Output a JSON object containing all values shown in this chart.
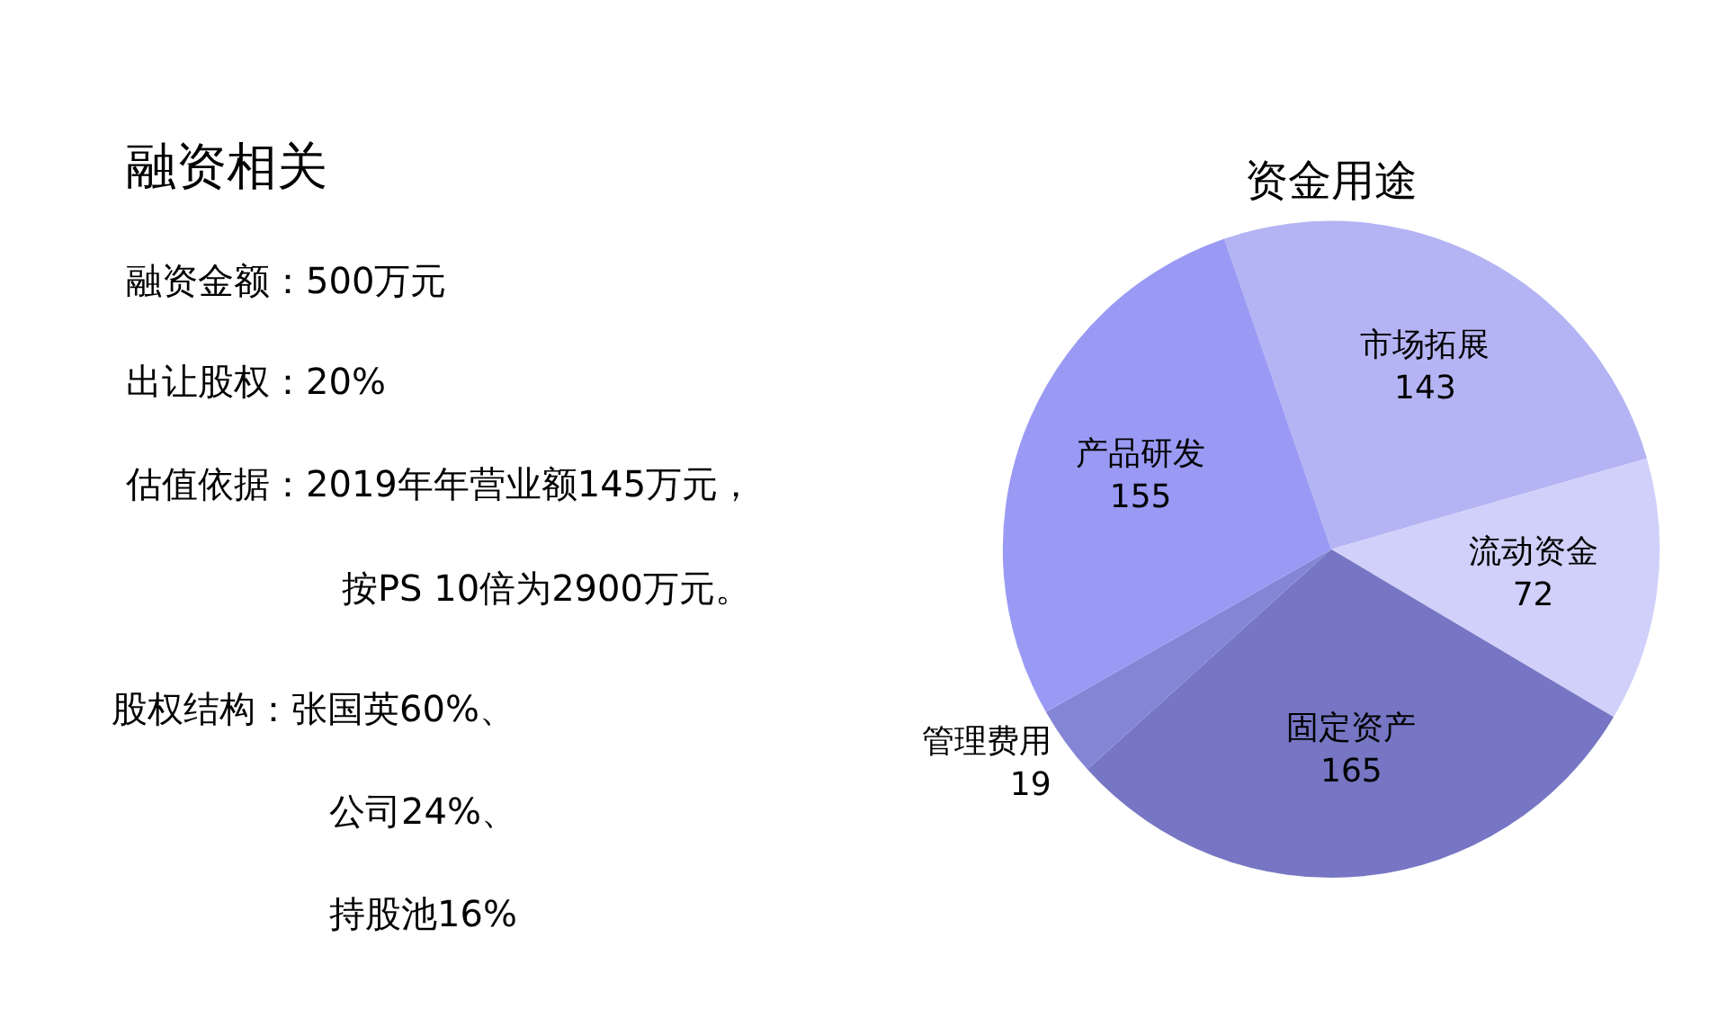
{
  "chart_data": {
    "type": "pie",
    "title": "资金用途",
    "categories": [
      "市场拓展",
      "流动资金",
      "固定资产",
      "管理费用",
      "产品研发"
    ],
    "values": [
      143,
      72,
      165,
      19,
      155
    ],
    "colors": [
      "#b4b4f4",
      "#d0d0fa",
      "#7676c4",
      "#8585d6",
      "#9a9af5"
    ],
    "data_labels": true,
    "annotations": [
      "融资相关",
      "融资金额：500万元",
      "出让股权：20%",
      "估值依据：2019年年营业额145万元，",
      "按PS 10倍为2900万元。",
      "股权结构：张国英60%、",
      "公司24%、",
      "持股池16%"
    ]
  }
}
